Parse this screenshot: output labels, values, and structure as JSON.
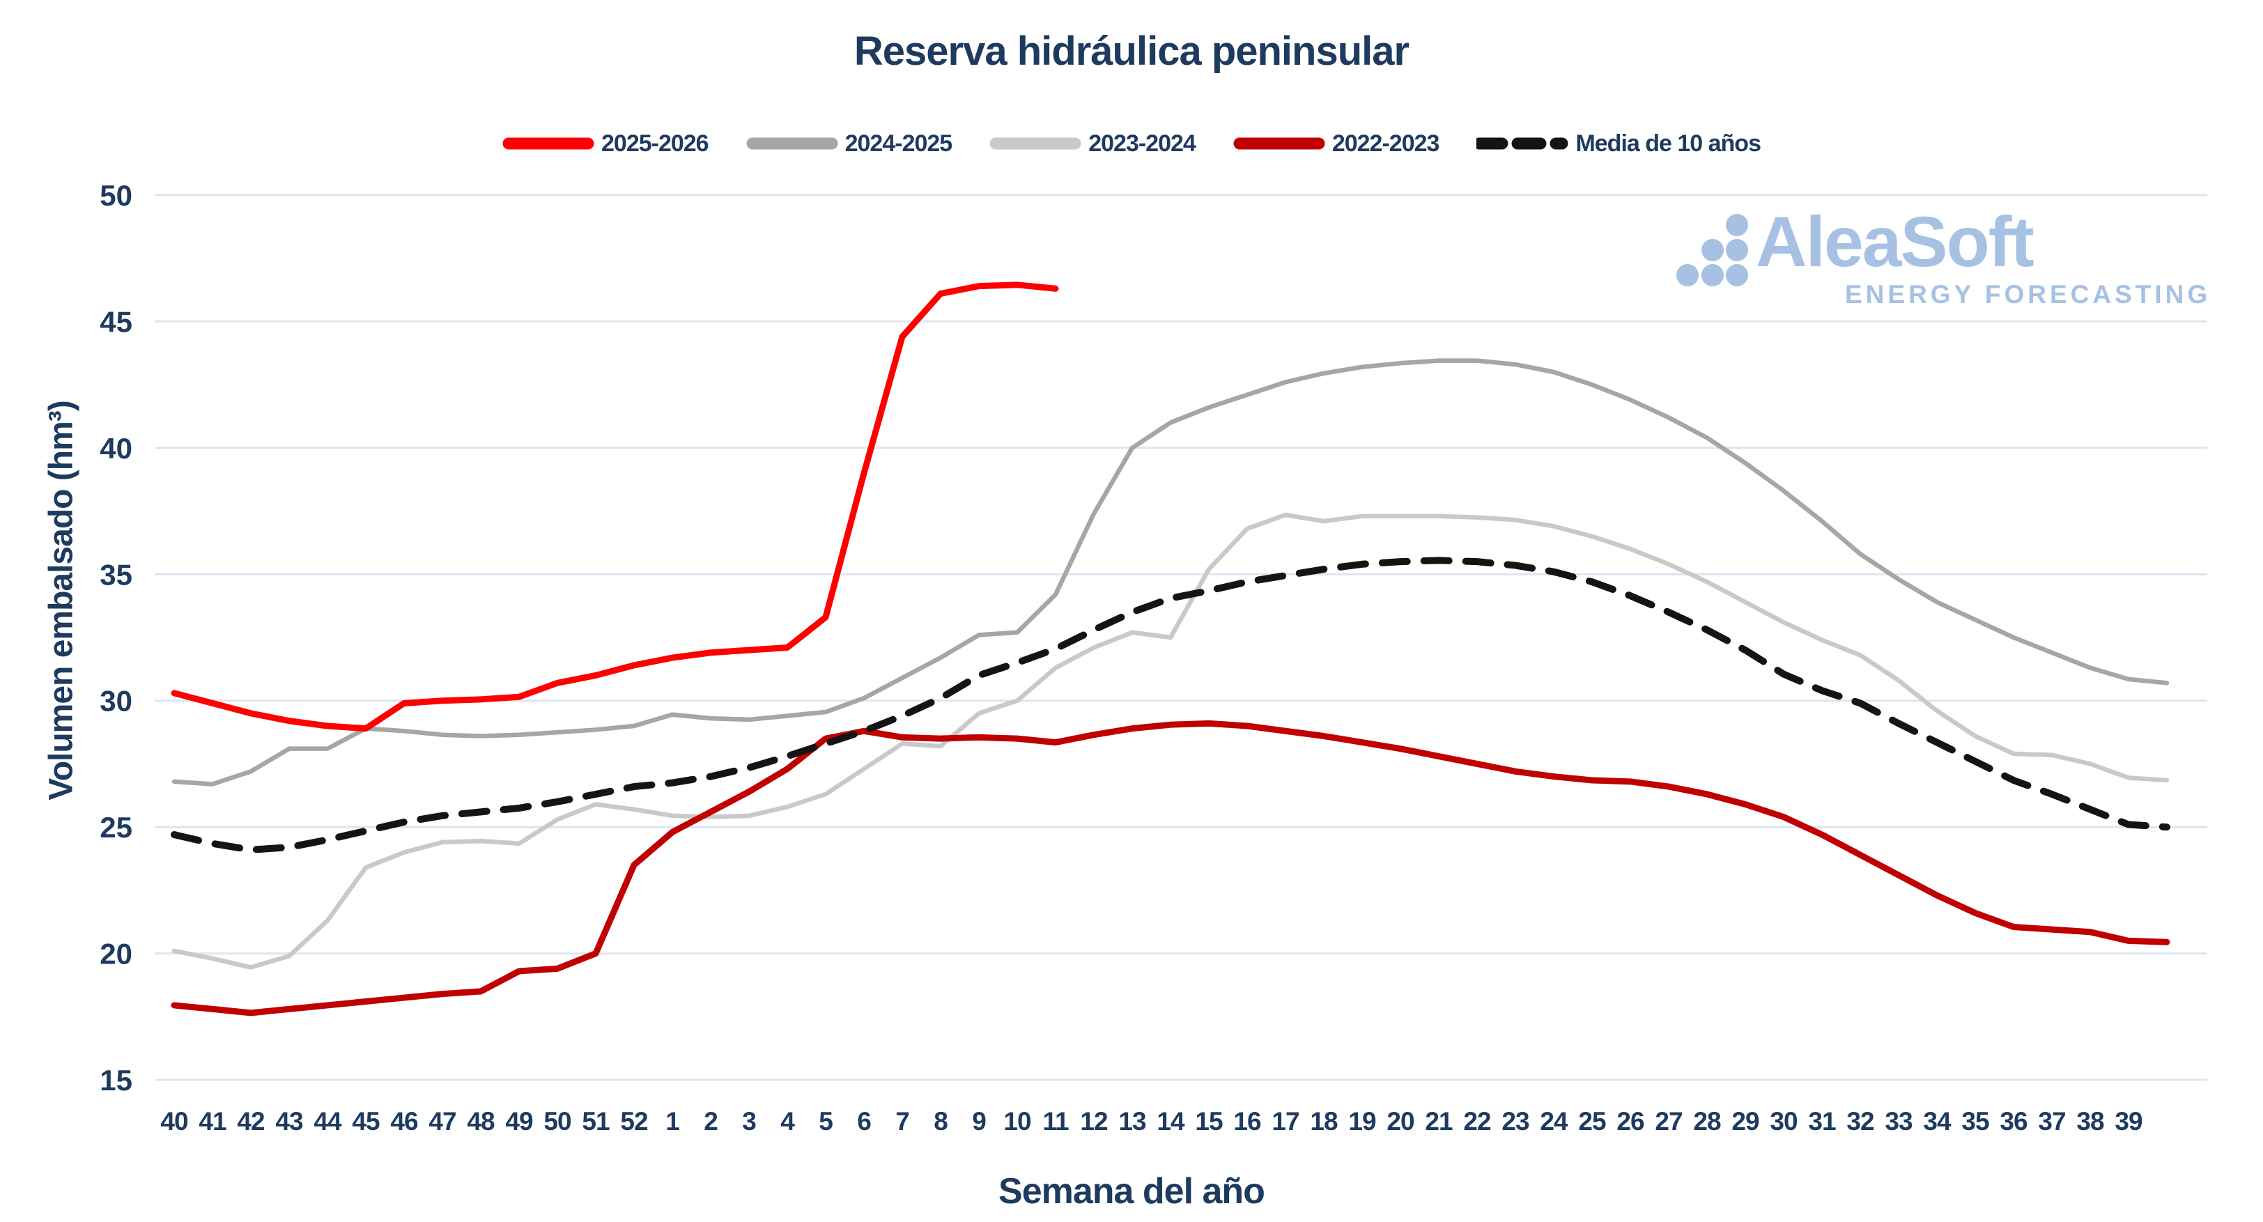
{
  "chart_data": {
    "type": "line",
    "title": "Reserva hidráulica peninsular",
    "xlabel": "Semana del año",
    "ylabel": "Volumen embalsado (hm³)",
    "ylim": [
      15,
      50
    ],
    "yticks": [
      50,
      45,
      40,
      35,
      30,
      25,
      20,
      15
    ],
    "grid": "horizontal",
    "legend_position": "top",
    "x_labels": [
      "40",
      "41",
      "42",
      "43",
      "44",
      "45",
      "46",
      "47",
      "48",
      "49",
      "50",
      "51",
      "52",
      "1",
      "2",
      "3",
      "4",
      "5",
      "6",
      "7",
      "8",
      "9",
      "10",
      "11",
      "12",
      "13",
      "14",
      "15",
      "16",
      "17",
      "18",
      "19",
      "20",
      "21",
      "22",
      "23",
      "24",
      "25",
      "26",
      "27",
      "28",
      "29",
      "30",
      "31",
      "32",
      "33",
      "34",
      "35",
      "36",
      "37",
      "38",
      "39"
    ],
    "series": [
      {
        "name": "2023-2024",
        "color": "#c9c9c9",
        "width": 6.5,
        "dash": null,
        "values": [
          20.1,
          19.8,
          19.45,
          19.9,
          21.3,
          23.4,
          24.0,
          24.4,
          24.45,
          24.35,
          25.3,
          25.9,
          25.7,
          25.45,
          25.4,
          25.45,
          25.8,
          26.3,
          27.3,
          28.3,
          28.2,
          29.5,
          30.0,
          31.3,
          32.1,
          32.7,
          32.5,
          35.2,
          36.8,
          37.35,
          37.1,
          37.3,
          37.3,
          37.3,
          37.25,
          37.15,
          36.9,
          36.5,
          36.0,
          35.4,
          34.7,
          33.9,
          33.1,
          32.4,
          31.8,
          30.8,
          29.6,
          28.6,
          27.9,
          27.85,
          27.5,
          26.95,
          26.85
        ]
      },
      {
        "name": "2024-2025",
        "color": "#a6a6a6",
        "width": 6.5,
        "dash": null,
        "values": [
          26.8,
          26.7,
          27.2,
          28.1,
          28.1,
          28.9,
          28.8,
          28.65,
          28.6,
          28.65,
          28.75,
          28.85,
          29.0,
          29.45,
          29.3,
          29.25,
          29.4,
          29.55,
          30.1,
          30.9,
          31.7,
          32.6,
          32.7,
          34.2,
          37.4,
          40.0,
          41.0,
          41.6,
          42.1,
          42.6,
          42.95,
          43.2,
          43.35,
          43.45,
          43.45,
          43.3,
          43.0,
          42.5,
          41.9,
          41.2,
          40.4,
          39.4,
          38.3,
          37.1,
          35.8,
          34.8,
          33.9,
          33.2,
          32.5,
          31.9,
          31.3,
          30.85,
          30.7
        ]
      },
      {
        "name": "2022-2023",
        "color": "#c00000",
        "width": 9,
        "dash": null,
        "values": [
          17.95,
          17.8,
          17.65,
          17.8,
          17.95,
          18.1,
          18.25,
          18.4,
          18.5,
          19.3,
          19.4,
          20.0,
          23.5,
          24.8,
          25.6,
          26.4,
          27.3,
          28.5,
          28.8,
          28.55,
          28.5,
          28.55,
          28.5,
          28.35,
          28.65,
          28.9,
          29.05,
          29.1,
          29.0,
          28.8,
          28.6,
          28.35,
          28.1,
          27.8,
          27.5,
          27.2,
          27.0,
          26.85,
          26.8,
          26.6,
          26.3,
          25.9,
          25.4,
          24.7,
          23.9,
          23.1,
          22.3,
          21.6,
          21.05,
          20.95,
          20.85,
          20.5,
          20.45
        ]
      },
      {
        "name": "Media de 10 años",
        "color": "#141414",
        "width": 10,
        "dash": [
          36,
          24
        ],
        "values": [
          24.7,
          24.35,
          24.1,
          24.2,
          24.5,
          24.85,
          25.2,
          25.45,
          25.6,
          25.75,
          26.0,
          26.3,
          26.6,
          26.75,
          27.0,
          27.35,
          27.8,
          28.3,
          28.8,
          29.4,
          30.1,
          31.0,
          31.5,
          32.05,
          32.8,
          33.5,
          34.05,
          34.35,
          34.7,
          34.95,
          35.2,
          35.4,
          35.5,
          35.55,
          35.5,
          35.35,
          35.1,
          34.7,
          34.15,
          33.5,
          32.8,
          32.0,
          31.05,
          30.4,
          29.9,
          29.1,
          28.35,
          27.6,
          26.85,
          26.3,
          25.7,
          25.1,
          25.0
        ]
      },
      {
        "name": "2025-2026",
        "color": "#ff0000",
        "width": 9,
        "dash": null,
        "values": [
          30.3,
          29.9,
          29.5,
          29.2,
          29.0,
          28.9,
          29.9,
          30.0,
          30.05,
          30.15,
          30.7,
          31.0,
          31.4,
          31.7,
          31.9,
          32.0,
          32.1,
          33.3,
          39.0,
          44.4,
          46.1,
          46.4,
          46.45,
          46.3
        ]
      }
    ],
    "legend_order": [
      "2025-2026",
      "2024-2025",
      "2023-2024",
      "2022-2023",
      "Media de 10 años"
    ]
  },
  "logo": {
    "brand": "AleaSoft",
    "tagline": "ENERGY FORECASTING",
    "color": "#a6c1e2"
  },
  "colors": {
    "text_navy": "#1e3a5f",
    "gridline": "#dbe6f3",
    "background": "#ffffff"
  }
}
